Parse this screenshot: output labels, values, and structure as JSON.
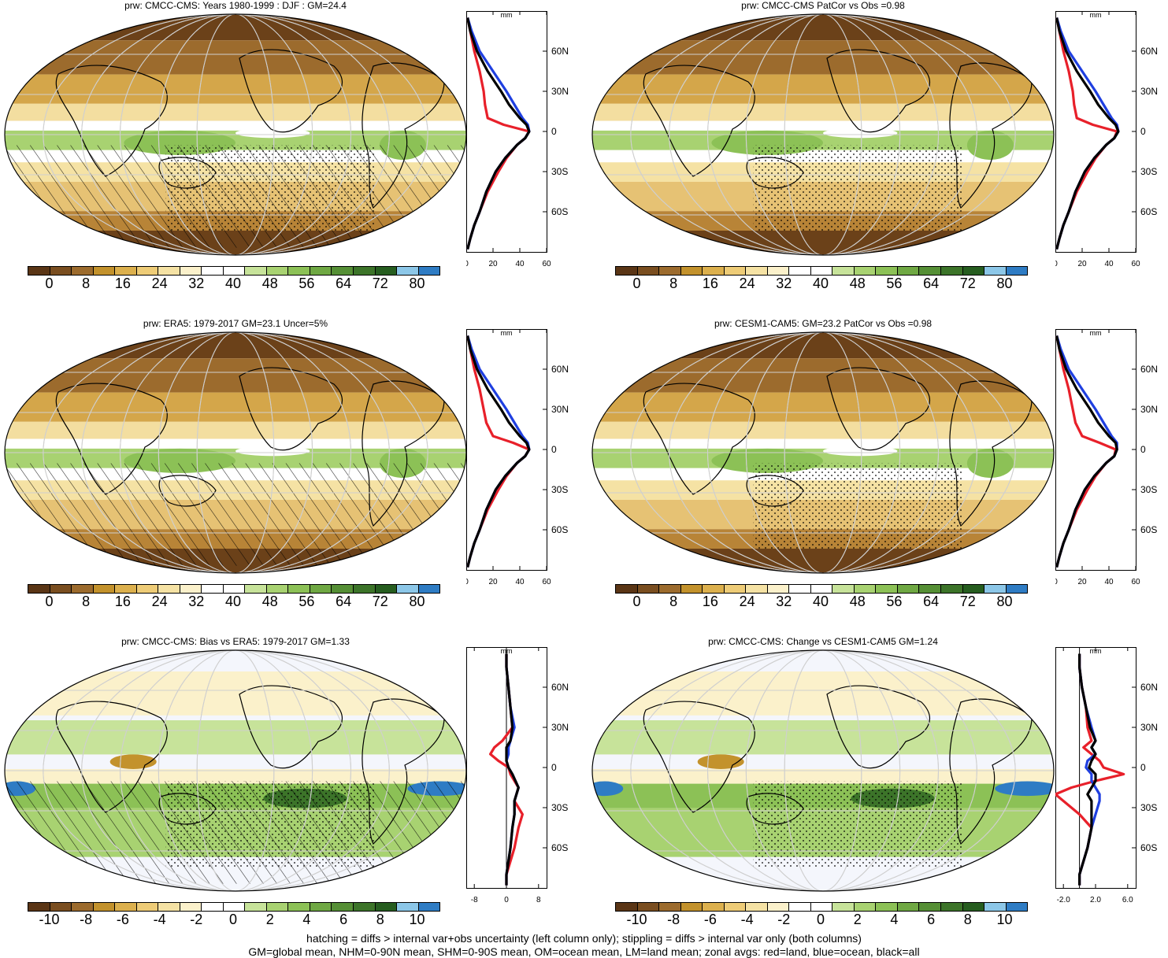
{
  "colors": {
    "pos_scale": [
      "#5a3515",
      "#7a4e20",
      "#9c6b2d",
      "#c3922c",
      "#dcb04d",
      "#eecc77",
      "#f5e2a4",
      "#fbf1cb",
      "#ffffff",
      "#ffffff",
      "#c7e39a",
      "#a8d271",
      "#8cc156",
      "#6fa843",
      "#558f35",
      "#3c7429",
      "#265d1f",
      "#8cc7e8",
      "#2e7cc4"
    ],
    "diff_scale": [
      "#5a3515",
      "#7a4e20",
      "#9c6b2d",
      "#c3922c",
      "#dcb04d",
      "#eecc77",
      "#f5e2a4",
      "#fbf1cb",
      "#ffffff",
      "#ffffff",
      "#c7e39a",
      "#a8d271",
      "#8cc156",
      "#6fa843",
      "#558f35",
      "#3c7429",
      "#265d1f",
      "#8cc7e8",
      "#2e7cc4"
    ],
    "land": "#e8202a",
    "ocean": "#1f3fe0",
    "all": "#000000"
  },
  "panels": [
    {
      "title": "prw: CMCC-CMS: Years 1980-1999 : DJF : GM=24.4",
      "type": "mean",
      "hatch": true,
      "stipple": true
    },
    {
      "title": "prw: CMCC-CMS PatCor vs Obs =0.98",
      "type": "mean",
      "hatch": false,
      "stipple": true
    },
    {
      "title": "prw: ERA5: 1979-2017 GM=23.1 Uncer=5%",
      "type": "mean",
      "hatch": true,
      "stipple": false
    },
    {
      "title": "prw: CESM1-CAM5: GM=23.2 PatCor vs Obs =0.98",
      "type": "mean",
      "hatch": false,
      "stipple": true
    },
    {
      "title": "prw: CMCC-CMS: Bias vs ERA5: 1979-2017 GM=1.33",
      "type": "diff",
      "hatch": true,
      "stipple": true
    },
    {
      "title": "prw: CMCC-CMS: Change vs CESM1-CAM5 GM=1.24",
      "type": "diff",
      "hatch": false,
      "stipple": true
    }
  ],
  "colorbar_labels": {
    "mean": [
      "0",
      "8",
      "16",
      "24",
      "32",
      "40",
      "48",
      "56",
      "64",
      "72",
      "80"
    ],
    "diff": [
      "-10",
      "-8",
      "-6",
      "-4",
      "-2",
      "0",
      "2",
      "4",
      "6",
      "8",
      "10"
    ]
  },
  "zonal_axes": {
    "unit": "mm",
    "lat_labels": [
      "60N",
      "30N",
      "0",
      "30S",
      "60S"
    ],
    "mean_xticks": [
      "0",
      "20",
      "40",
      "60"
    ],
    "bias_xticks": [
      "-8",
      "0",
      "8"
    ],
    "change_xticks": [
      "-2.0",
      "2.0",
      "6.0"
    ]
  },
  "footer": {
    "line1": "hatching = diffs > internal var+obs uncertainty (left column only); stippling = diffs > internal var only (both columns)",
    "line2": "GM=global mean, NHM=0-90N mean, SHM=0-90S mean, OM=ocean mean, LM=land mean; zonal avgs: red=land, blue=ocean, black=all"
  },
  "chart_data": [
    {
      "type": "line",
      "title": "prw: CMCC-CMS: Years 1980-1999 : DJF : GM=24.4",
      "xlabel": "mm",
      "ylabel": "",
      "xlim": [
        0,
        60
      ],
      "ylim": [
        -90,
        90
      ],
      "y": [
        85,
        75,
        60,
        45,
        30,
        20,
        10,
        5,
        0,
        -5,
        -10,
        -20,
        -30,
        -45,
        -60,
        -70,
        -80,
        -88
      ],
      "series": [
        {
          "name": "land",
          "values": [
            1,
            3,
            6,
            10,
            13,
            14,
            16,
            28,
            47,
            44,
            38,
            30,
            24,
            16,
            10,
            6,
            3,
            1
          ]
        },
        {
          "name": "ocean",
          "values": [
            1,
            4,
            10,
            20,
            30,
            36,
            42,
            46,
            47,
            44,
            38,
            29,
            22,
            15,
            10,
            6,
            3,
            1
          ]
        },
        {
          "name": "all",
          "values": [
            1,
            3,
            8,
            16,
            26,
            32,
            40,
            45,
            47,
            44,
            38,
            29,
            22,
            15,
            10,
            6,
            3,
            1
          ]
        }
      ]
    },
    {
      "type": "line",
      "title": "prw: CMCC-CMS PatCor vs Obs =0.98",
      "xlabel": "mm",
      "ylabel": "",
      "xlim": [
        0,
        60
      ],
      "ylim": [
        -90,
        90
      ],
      "y": [
        85,
        75,
        60,
        45,
        30,
        20,
        10,
        5,
        0,
        -5,
        -10,
        -20,
        -30,
        -45,
        -60,
        -70,
        -80,
        -88
      ],
      "series": [
        {
          "name": "land",
          "values": [
            1,
            3,
            6,
            10,
            13,
            14,
            16,
            28,
            46,
            44,
            38,
            30,
            24,
            16,
            10,
            6,
            3,
            1
          ]
        },
        {
          "name": "ocean",
          "values": [
            1,
            4,
            10,
            20,
            30,
            36,
            42,
            46,
            47,
            44,
            38,
            29,
            22,
            15,
            10,
            6,
            3,
            1
          ]
        },
        {
          "name": "all",
          "values": [
            1,
            3,
            8,
            16,
            26,
            32,
            40,
            45,
            47,
            44,
            38,
            29,
            22,
            15,
            10,
            6,
            3,
            1
          ]
        }
      ]
    },
    {
      "type": "line",
      "title": "prw: ERA5: 1979-2017 GM=23.1 Uncer=5%",
      "xlabel": "mm",
      "ylabel": "",
      "xlim": [
        0,
        60
      ],
      "ylim": [
        -90,
        90
      ],
      "y": [
        85,
        75,
        60,
        45,
        30,
        20,
        10,
        5,
        0,
        -5,
        -10,
        -20,
        -30,
        -45,
        -60,
        -70,
        -80,
        -88
      ],
      "series": [
        {
          "name": "land",
          "values": [
            1,
            3,
            6,
            10,
            13,
            15,
            20,
            35,
            47,
            44,
            38,
            30,
            24,
            16,
            10,
            6,
            3,
            1
          ]
        },
        {
          "name": "ocean",
          "values": [
            1,
            4,
            10,
            20,
            30,
            36,
            42,
            46,
            47,
            44,
            38,
            29,
            22,
            15,
            10,
            6,
            3,
            1
          ]
        },
        {
          "name": "all",
          "values": [
            1,
            3,
            8,
            16,
            26,
            32,
            40,
            45,
            47,
            44,
            38,
            29,
            22,
            15,
            10,
            6,
            3,
            1
          ]
        }
      ]
    },
    {
      "type": "line",
      "title": "prw: CESM1-CAM5: GM=23.2 PatCor vs Obs =0.98",
      "xlabel": "mm",
      "ylabel": "",
      "xlim": [
        0,
        60
      ],
      "ylim": [
        -90,
        90
      ],
      "y": [
        85,
        75,
        60,
        45,
        30,
        20,
        10,
        5,
        0,
        -5,
        -10,
        -20,
        -30,
        -45,
        -60,
        -70,
        -80,
        -88
      ],
      "series": [
        {
          "name": "land",
          "values": [
            1,
            3,
            6,
            10,
            13,
            15,
            20,
            33,
            45,
            44,
            38,
            30,
            24,
            16,
            10,
            6,
            3,
            1
          ]
        },
        {
          "name": "ocean",
          "values": [
            1,
            4,
            10,
            20,
            30,
            36,
            42,
            46,
            46,
            44,
            38,
            29,
            22,
            15,
            10,
            6,
            3,
            1
          ]
        },
        {
          "name": "all",
          "values": [
            1,
            3,
            8,
            16,
            26,
            32,
            40,
            45,
            46,
            44,
            38,
            29,
            22,
            15,
            10,
            6,
            3,
            1
          ]
        }
      ]
    },
    {
      "type": "line",
      "title": "prw: CMCC-CMS: Bias vs ERA5: 1979-2017 GM=1.33",
      "xlabel": "mm",
      "ylabel": "",
      "xlim": [
        -10,
        10
      ],
      "ylim": [
        -90,
        90
      ],
      "y": [
        85,
        75,
        60,
        45,
        30,
        20,
        15,
        10,
        5,
        0,
        -5,
        -15,
        -25,
        -35,
        -45,
        -60,
        -70,
        -80,
        -88
      ],
      "series": [
        {
          "name": "land",
          "values": [
            0,
            0,
            0.5,
            1,
            1.5,
            -1,
            -3,
            -4,
            -2,
            0.5,
            1,
            3,
            2,
            4,
            3,
            2,
            1,
            0,
            0
          ]
        },
        {
          "name": "ocean",
          "values": [
            0,
            0,
            0.5,
            1,
            2,
            1,
            0.5,
            0.5,
            0,
            0.5,
            1.5,
            3,
            2,
            2,
            1.5,
            1,
            0.5,
            0,
            0
          ]
        },
        {
          "name": "all",
          "values": [
            0,
            0,
            0.5,
            1,
            1.5,
            1,
            0,
            0,
            0,
            0.5,
            1.5,
            3,
            2,
            2,
            1.5,
            1,
            0.5,
            0,
            0
          ]
        }
      ]
    },
    {
      "type": "line",
      "title": "prw: CMCC-CMS: Change vs CESM1-CAM5 GM=1.24",
      "xlabel": "mm",
      "ylabel": "",
      "xlim": [
        -3,
        7
      ],
      "ylim": [
        -90,
        90
      ],
      "y": [
        85,
        75,
        60,
        45,
        30,
        20,
        15,
        10,
        5,
        0,
        -5,
        -10,
        -15,
        -20,
        -25,
        -35,
        -45,
        -60,
        -70,
        -80,
        -88
      ],
      "series": [
        {
          "name": "land",
          "values": [
            0,
            0,
            0.3,
            0.8,
            1,
            1.5,
            0.5,
            1.5,
            2.5,
            3,
            5.5,
            2,
            -1,
            -3,
            -2,
            0,
            1.5,
            1,
            0.5,
            0,
            0
          ]
        },
        {
          "name": "ocean",
          "values": [
            0,
            0,
            0.3,
            0.8,
            1.5,
            2,
            1.5,
            2,
            1,
            0.8,
            1.5,
            1.5,
            2,
            2.5,
            2.5,
            2,
            1.5,
            1,
            0.5,
            0,
            0
          ]
        },
        {
          "name": "all",
          "values": [
            0,
            0,
            0.3,
            0.8,
            1.3,
            2,
            1.5,
            2,
            1.5,
            1.2,
            2,
            2,
            1.5,
            1,
            1.5,
            1.5,
            1.5,
            1,
            0.5,
            0,
            0
          ]
        }
      ]
    }
  ]
}
